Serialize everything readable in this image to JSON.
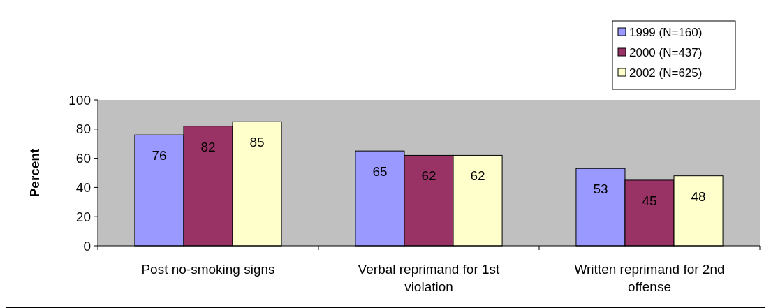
{
  "chart_data": {
    "type": "bar",
    "ylabel": "Percent",
    "categories": [
      "Post no-smoking signs",
      "Verbal reprimand for 1st violation",
      "Written reprimand for 2nd offense"
    ],
    "series": [
      {
        "name": "1999 (N=160)",
        "color": "#9999ff",
        "values": [
          76,
          65,
          53
        ]
      },
      {
        "name": "2000 (N=437)",
        "color": "#993366",
        "values": [
          82,
          62,
          45
        ]
      },
      {
        "name": "2002 (N=625)",
        "color": "#ffffcc",
        "values": [
          85,
          62,
          48
        ]
      }
    ],
    "ylim": [
      0,
      100
    ],
    "yticks": [
      0,
      20,
      40,
      60,
      80,
      100
    ],
    "grid": false,
    "legend": "top right",
    "data_labels": true
  }
}
